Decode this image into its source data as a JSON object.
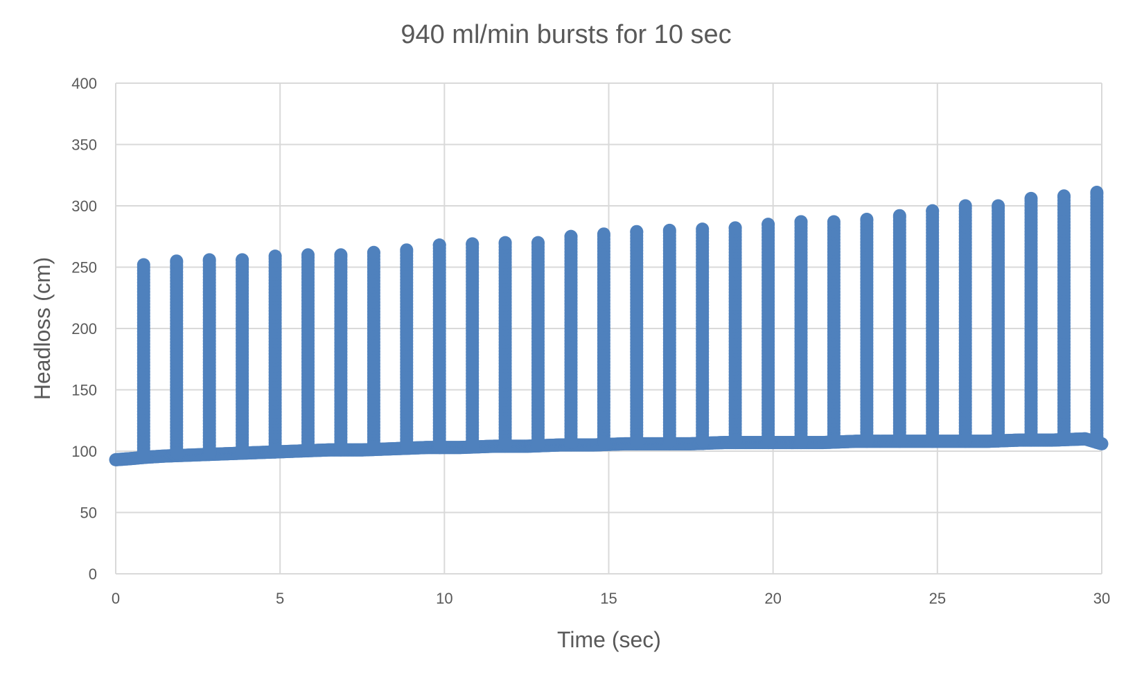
{
  "chart_data": {
    "type": "scatter",
    "title": "940 ml/min bursts for 10 sec",
    "xlabel": "Time (sec)",
    "ylabel": "Headloss (cm)",
    "xlim": [
      0,
      30
    ],
    "ylim": [
      0,
      400
    ],
    "x_ticks": [
      0,
      5,
      10,
      15,
      20,
      25,
      30
    ],
    "y_ticks": [
      0,
      50,
      100,
      150,
      200,
      250,
      300,
      350,
      400
    ],
    "grid": true,
    "legend": "none",
    "marker_color": "#4f81bd",
    "series": [
      {
        "baseline": [
          [
            0.0,
            93
          ],
          [
            0.5,
            94
          ],
          [
            0.9,
            95
          ],
          [
            1.5,
            96
          ],
          [
            2.5,
            97
          ],
          [
            3.5,
            98
          ],
          [
            4.5,
            99
          ],
          [
            5.5,
            100
          ],
          [
            6.5,
            101
          ],
          [
            7.5,
            101
          ],
          [
            8.5,
            102
          ],
          [
            9.5,
            103
          ],
          [
            10.5,
            103
          ],
          [
            11.5,
            104
          ],
          [
            12.5,
            104
          ],
          [
            13.5,
            105
          ],
          [
            14.5,
            105
          ],
          [
            15.5,
            106
          ],
          [
            16.5,
            106
          ],
          [
            17.5,
            106
          ],
          [
            18.5,
            107
          ],
          [
            19.5,
            107
          ],
          [
            20.5,
            107
          ],
          [
            21.5,
            107
          ],
          [
            22.5,
            108
          ],
          [
            23.5,
            108
          ],
          [
            24.5,
            108
          ],
          [
            25.5,
            108
          ],
          [
            26.5,
            108
          ],
          [
            27.5,
            109
          ],
          [
            28.5,
            109
          ],
          [
            29.5,
            110
          ],
          [
            30.0,
            106
          ]
        ],
        "bursts": [
          {
            "x": 0.85,
            "peak": 252
          },
          {
            "x": 1.85,
            "peak": 255
          },
          {
            "x": 2.85,
            "peak": 256
          },
          {
            "x": 3.85,
            "peak": 256
          },
          {
            "x": 4.85,
            "peak": 259
          },
          {
            "x": 5.85,
            "peak": 260
          },
          {
            "x": 6.85,
            "peak": 260
          },
          {
            "x": 7.85,
            "peak": 262
          },
          {
            "x": 8.85,
            "peak": 264
          },
          {
            "x": 9.85,
            "peak": 268
          },
          {
            "x": 10.85,
            "peak": 269
          },
          {
            "x": 11.85,
            "peak": 270
          },
          {
            "x": 12.85,
            "peak": 270
          },
          {
            "x": 13.85,
            "peak": 275
          },
          {
            "x": 14.85,
            "peak": 277
          },
          {
            "x": 15.85,
            "peak": 279
          },
          {
            "x": 16.85,
            "peak": 280
          },
          {
            "x": 17.85,
            "peak": 281
          },
          {
            "x": 18.85,
            "peak": 282
          },
          {
            "x": 19.85,
            "peak": 285
          },
          {
            "x": 20.85,
            "peak": 287
          },
          {
            "x": 21.85,
            "peak": 287
          },
          {
            "x": 22.85,
            "peak": 289
          },
          {
            "x": 23.85,
            "peak": 292
          },
          {
            "x": 24.85,
            "peak": 296
          },
          {
            "x": 25.85,
            "peak": 300
          },
          {
            "x": 26.85,
            "peak": 300
          },
          {
            "x": 27.85,
            "peak": 306
          },
          {
            "x": 28.85,
            "peak": 308
          },
          {
            "x": 29.85,
            "peak": 311
          }
        ]
      }
    ]
  }
}
